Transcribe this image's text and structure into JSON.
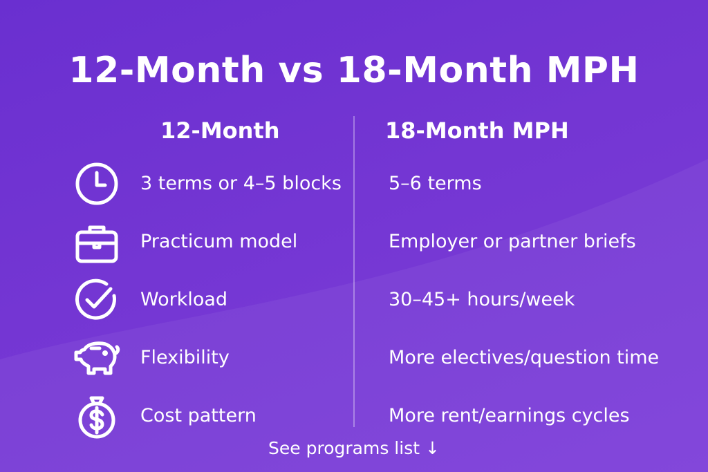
{
  "title": "12-Month vs 18-Month MPH",
  "columns": {
    "left_heading": "12-Month",
    "right_heading": "18-Month MPH"
  },
  "rows": [
    {
      "icon": "clock-icon",
      "left": "3 terms or 4–5 blocks",
      "right": "5–6 terms"
    },
    {
      "icon": "briefcase-icon",
      "left": "Practicum model",
      "right": "Employer or partner briefs"
    },
    {
      "icon": "check-circle-icon",
      "left": "Workload",
      "right": "30–45+ hours/week"
    },
    {
      "icon": "piggy-bank-icon",
      "left": "Flexibility",
      "right": "More electives/question time"
    },
    {
      "icon": "money-bag-icon",
      "left": "Cost pattern",
      "right": "More rent/earnings cycles"
    }
  ],
  "footer": {
    "link_label": "See programs list",
    "arrow": "↓"
  },
  "colors": {
    "background_start": "#6a2fd0",
    "background_end": "#7d3ed9",
    "text": "#ffffff"
  }
}
